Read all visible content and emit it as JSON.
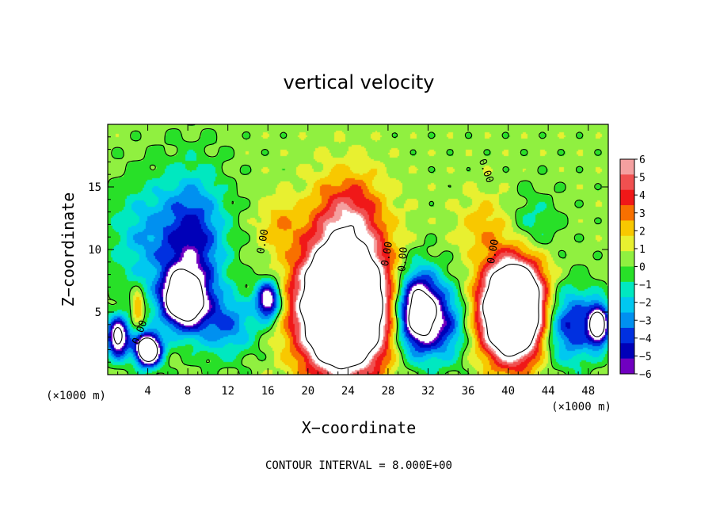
{
  "chart_data": {
    "type": "heatmap",
    "title": "vertical velocity",
    "xlabel": "X−coordinate",
    "ylabel": "Z−coordinate",
    "x_unit": "(×1000 m)",
    "z_unit": "(×1000 m)",
    "xlim": [
      0,
      50
    ],
    "ylim": [
      0,
      20
    ],
    "x_ticks": [
      4,
      8,
      12,
      16,
      20,
      24,
      28,
      32,
      36,
      40,
      44,
      48
    ],
    "y_ticks": [
      5,
      10,
      15
    ],
    "x_tick_labels": [
      "4",
      "8",
      "12",
      "16",
      "20",
      "24",
      "28",
      "32",
      "36",
      "40",
      "44",
      "48"
    ],
    "y_tick_labels": [
      "5",
      "10",
      "15"
    ],
    "colorbar": {
      "levels": [
        6,
        5,
        4,
        3,
        2,
        1,
        0,
        -1,
        -2,
        -3,
        -4,
        -5,
        -6
      ],
      "labels": [
        "6",
        "5",
        "4",
        "3",
        "2",
        "1",
        "0",
        "−1",
        "−2",
        "−3",
        "−4",
        "−5",
        "−6"
      ],
      "colors": [
        "#f4a0a0",
        "#f05050",
        "#f01818",
        "#f87000",
        "#f8c800",
        "#e8f030",
        "#90f040",
        "#28e028",
        "#00e8c0",
        "#00c8f0",
        "#0090f0",
        "#0030e0",
        "#0000b8",
        "#7000c0"
      ]
    },
    "background_value": 0.5,
    "features": [
      {
        "x": 23.5,
        "z": 5.5,
        "rx": 4.2,
        "rz": 5.0,
        "peak": 20
      },
      {
        "x": 40.5,
        "z": 5.2,
        "rx": 3.0,
        "rz": 3.7,
        "peak": 20
      },
      {
        "x": 4.0,
        "z": 2.0,
        "rx": 1.3,
        "rz": 1.3,
        "peak": -14
      },
      {
        "x": 1.0,
        "z": 3.0,
        "rx": 1.1,
        "rz": 1.6,
        "peak": -10
      },
      {
        "x": 7.5,
        "z": 6.0,
        "rx": 2.2,
        "rz": 2.2,
        "peak": -11
      },
      {
        "x": 8.5,
        "z": 10.5,
        "rx": 3.2,
        "rz": 5.5,
        "peak": -6
      },
      {
        "x": 3.5,
        "z": 11.0,
        "rx": 3.5,
        "rz": 4.5,
        "peak": -3
      },
      {
        "x": 31.0,
        "z": 5.0,
        "rx": 2.2,
        "rz": 3.2,
        "peak": -12
      },
      {
        "x": 46.0,
        "z": 4.0,
        "rx": 3.0,
        "rz": 3.0,
        "peak": -6
      },
      {
        "x": 49.0,
        "z": 4.0,
        "rx": 1.0,
        "rz": 1.6,
        "peak": -10
      },
      {
        "x": 16.0,
        "z": 6.0,
        "rx": 1.2,
        "rz": 1.5,
        "peak": -9
      },
      {
        "x": 12.0,
        "z": 4.0,
        "rx": 3.0,
        "rz": 2.5,
        "peak": -4
      },
      {
        "x": 34.0,
        "z": 4.0,
        "rx": 2.0,
        "rz": 3.0,
        "peak": -4
      },
      {
        "x": 24.0,
        "z": 13.0,
        "rx": 3.5,
        "rz": 3.5,
        "peak": 4
      },
      {
        "x": 17.0,
        "z": 12.0,
        "rx": 2.0,
        "rz": 2.0,
        "peak": 2
      },
      {
        "x": 3.0,
        "z": 5.5,
        "rx": 0.6,
        "rz": 1.2,
        "peak": 4
      },
      {
        "x": 37.5,
        "z": 12.0,
        "rx": 2.5,
        "rz": 2.5,
        "peak": 2
      },
      {
        "x": 42.5,
        "z": 12.0,
        "rx": 2.5,
        "rz": 2.5,
        "peak": -2
      }
    ],
    "contour_labels": [
      "0.00",
      "0.00",
      "0.00",
      "0.00",
      "0.00",
      "0.00"
    ],
    "note": "CONTOUR INTERVAL = 8.000E+00"
  }
}
